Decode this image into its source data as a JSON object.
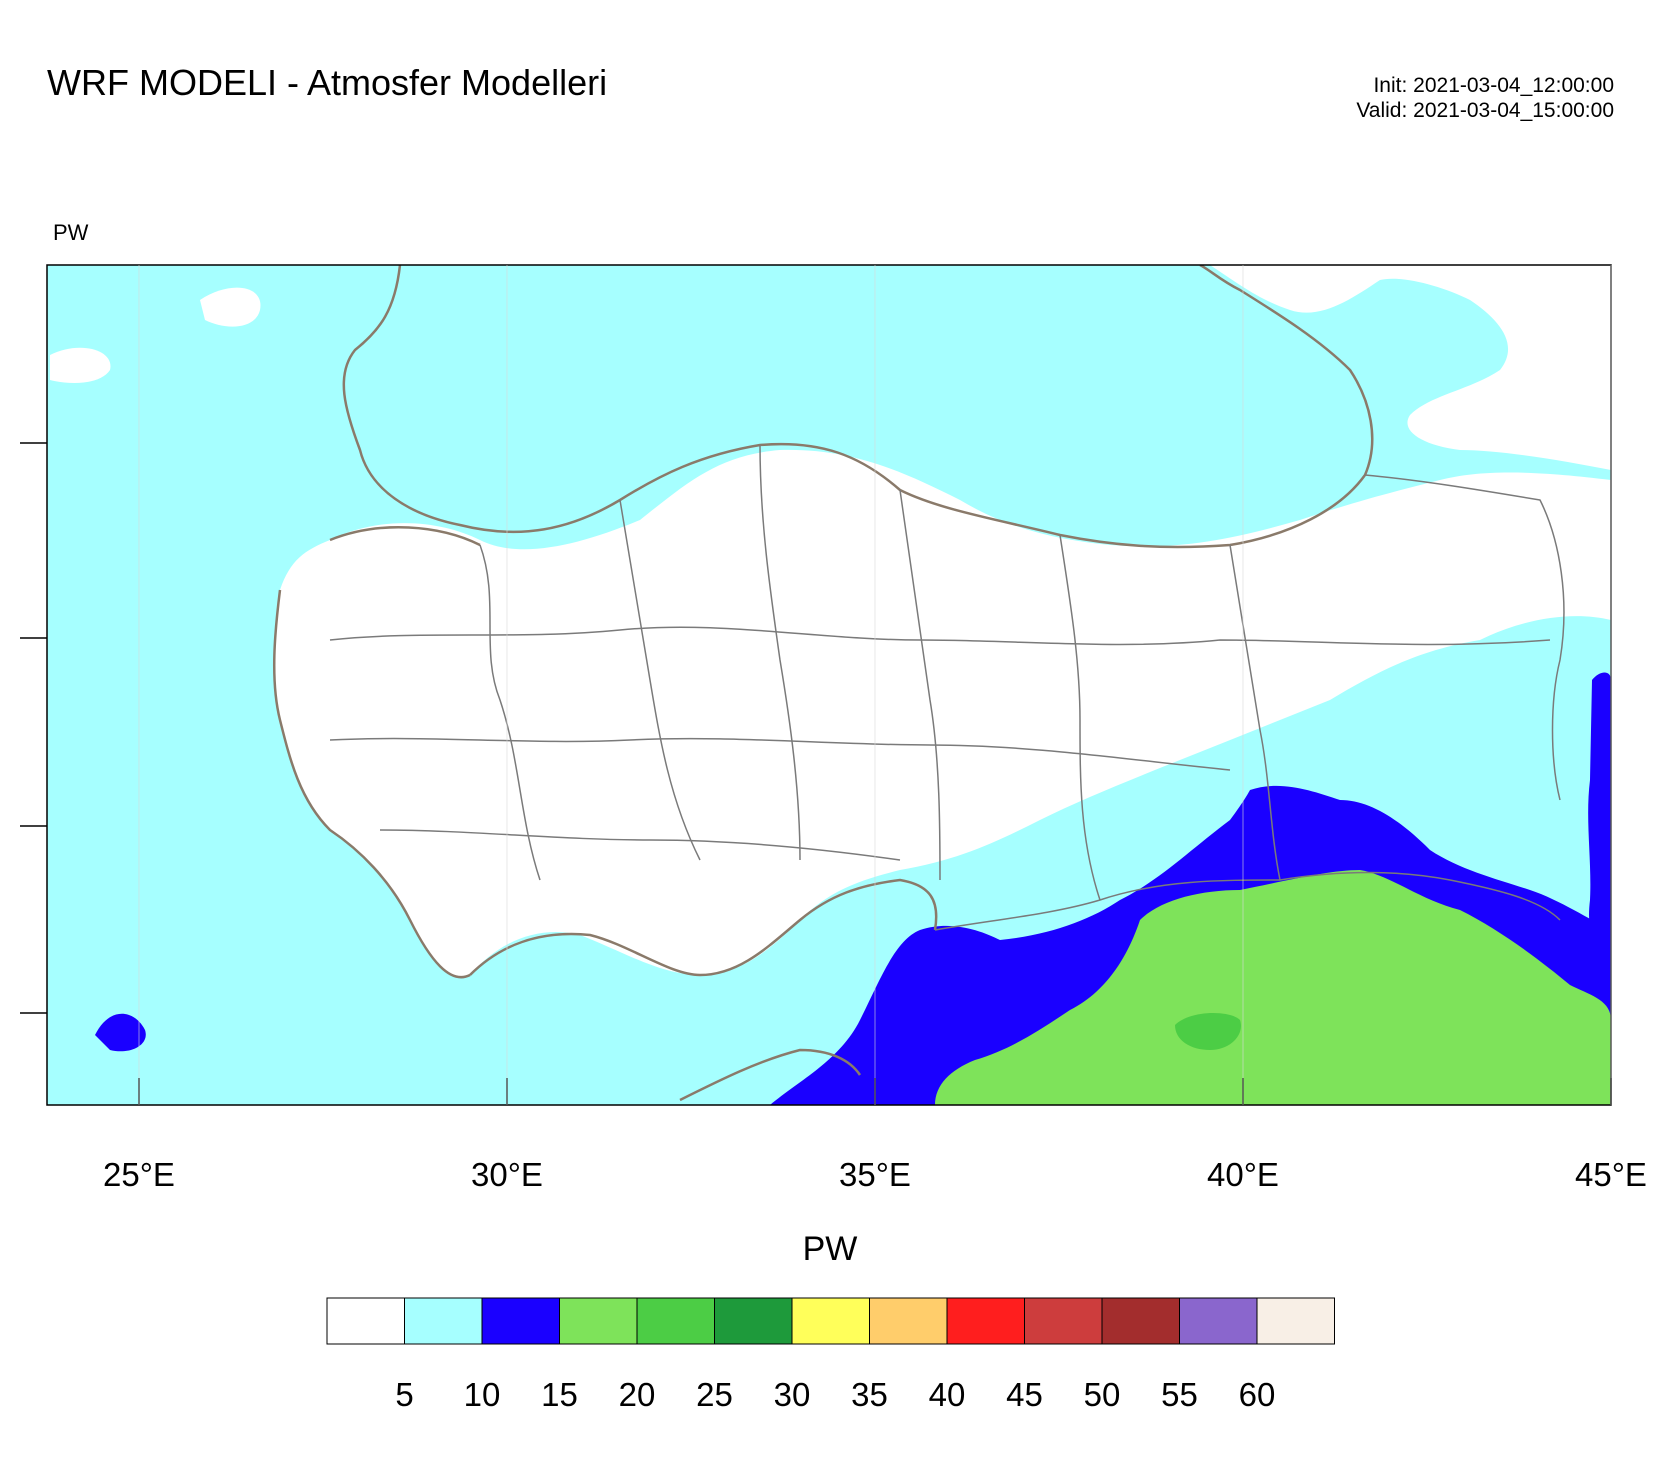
{
  "header": {
    "title": "WRF MODELI - Atmosfer Modelleri",
    "init_line": "Init: 2021-03-04_12:00:00",
    "valid_line": "Valid: 2021-03-04_15:00:00"
  },
  "plot": {
    "label": "PW",
    "lon_range": [
      23.75,
      45.0
    ],
    "lon_ticks": [
      "25°E",
      "30°E",
      "35°E",
      "40°E",
      "45°E"
    ],
    "lon_tick_values": [
      25,
      30,
      35,
      40,
      45
    ],
    "field": "precipitable water",
    "colors": {
      "lt5": "#ffffff",
      "5to10": "#a6ffff",
      "10to15": "#1a00ff",
      "15to20": "#7ee35a",
      "20to25": "#4ccd45",
      "border": "#8a7a6a",
      "province": "#7a7a7a"
    }
  },
  "colorbar": {
    "title": "PW",
    "colors": [
      "#ffffff",
      "#a6ffff",
      "#1a00ff",
      "#7ee35a",
      "#4ccd45",
      "#1e9a3b",
      "#ffff5a",
      "#ffcd6b",
      "#ff1e1e",
      "#cd3d3d",
      "#a32d2d",
      "#8a66cd",
      "#f8efe6"
    ],
    "labels": [
      "5",
      "10",
      "15",
      "20",
      "25",
      "30",
      "35",
      "40",
      "45",
      "50",
      "55",
      "60"
    ]
  }
}
